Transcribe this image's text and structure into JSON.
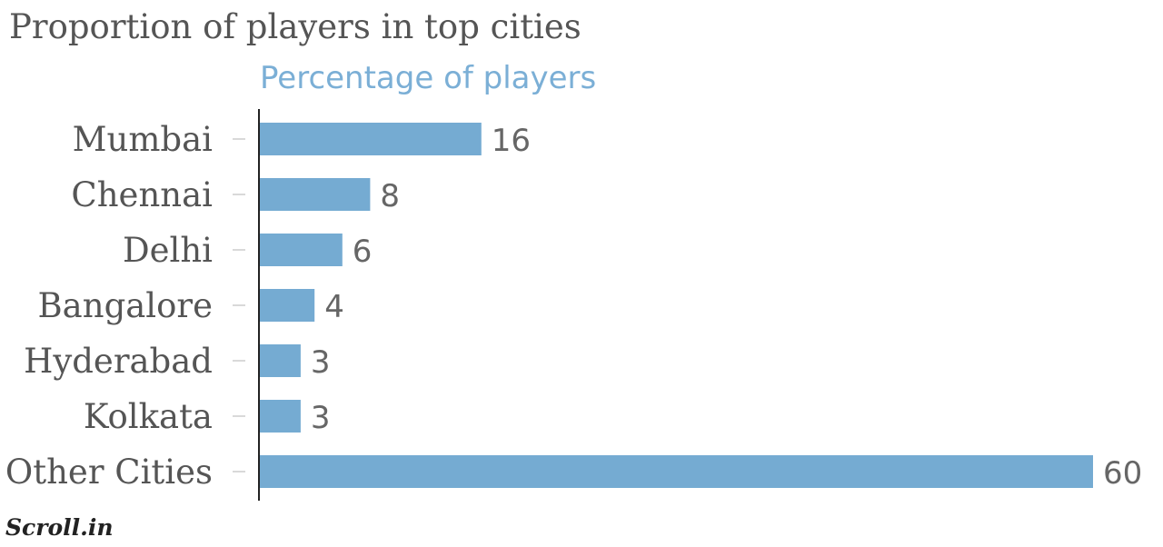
{
  "chart_data": {
    "type": "bar",
    "orientation": "horizontal",
    "title": "Proportion of players in top cities",
    "subtitle": "Percentage of players",
    "categories": [
      "Mumbai",
      "Chennai",
      "Delhi",
      "Bangalore",
      "Hyderabad",
      "Kolkata",
      "Other Cities"
    ],
    "values": [
      16,
      8,
      6,
      4,
      3,
      3,
      60
    ],
    "xlim": [
      0,
      60
    ],
    "bar_color": "#75abd2",
    "grid": false,
    "legend": "none"
  },
  "footer": {
    "logo_text": "Scroll.in"
  }
}
